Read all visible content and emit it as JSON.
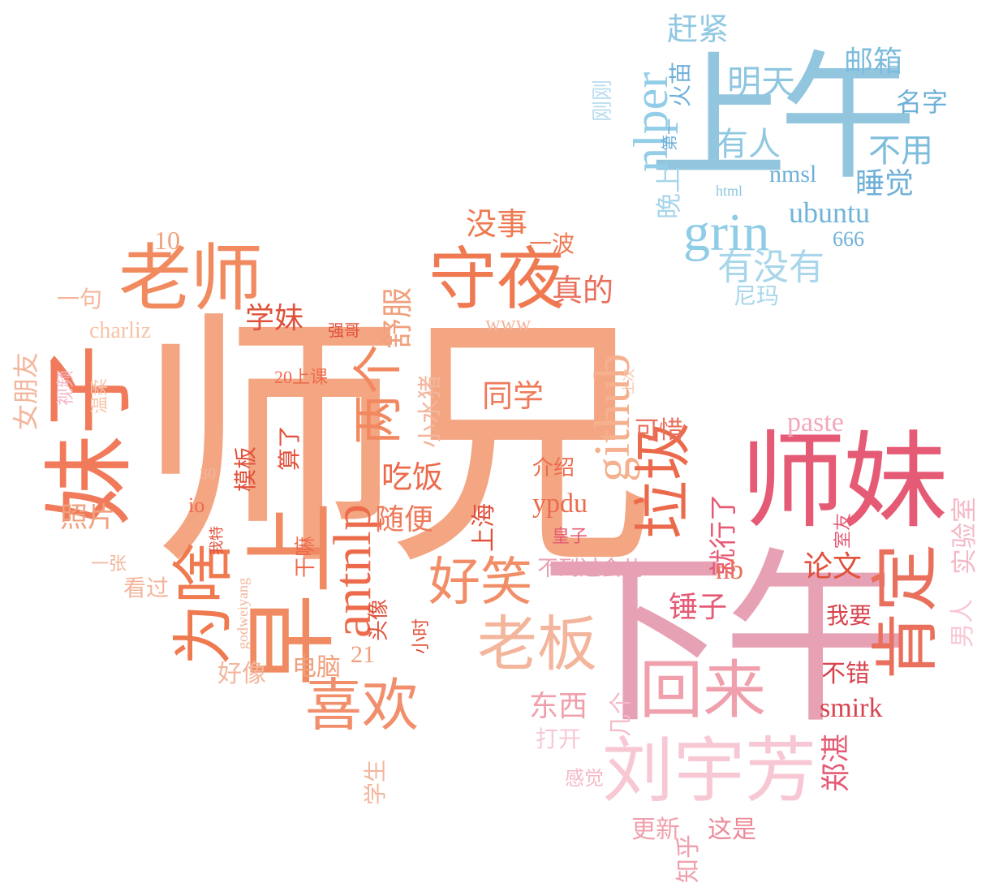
{
  "words": [
    {
      "text": "师兄",
      "color": "#f4a582"
    },
    {
      "text": "下午",
      "color": "#e7a1b4"
    },
    {
      "text": "上午",
      "color": "#92c5de"
    },
    {
      "text": "师妹",
      "color": "#e55a74"
    },
    {
      "text": "妹子",
      "color": "#f07a5a"
    },
    {
      "text": "早上",
      "color": "#f08a62"
    },
    {
      "text": "老师",
      "color": "#f28a60"
    },
    {
      "text": "守夜",
      "color": "#ef7a52"
    },
    {
      "text": "github",
      "color": "#f5b08e"
    },
    {
      "text": "antnlp",
      "color": "#ec6b4c"
    },
    {
      "text": "刘宇芳",
      "color": "#f7c8d4"
    },
    {
      "text": "肯定",
      "color": "#e8705c"
    },
    {
      "text": "回来",
      "color": "#f0a0ac"
    },
    {
      "text": "老板",
      "color": "#f3b69c"
    },
    {
      "text": "为啥",
      "color": "#f07a50"
    },
    {
      "text": "喜欢",
      "color": "#f18e6c"
    },
    {
      "text": "垃圾",
      "color": "#eb6a4c"
    },
    {
      "text": "两个",
      "color": "#f18860"
    },
    {
      "text": "好笑",
      "color": "#f18e68"
    },
    {
      "text": "grin",
      "color": "#8fcce6"
    },
    {
      "text": "nlper",
      "color": "#93cde8"
    },
    {
      "text": "ubuntu",
      "color": "#6fb4d8"
    },
    {
      "text": "明天",
      "color": "#8fc6e0"
    },
    {
      "text": "有人",
      "color": "#90c8e2"
    },
    {
      "text": "有没有",
      "color": "#a8d6ea"
    },
    {
      "text": "邮箱",
      "color": "#7cbcdc"
    },
    {
      "text": "不用",
      "color": "#7cbcdc"
    },
    {
      "text": "睡觉",
      "color": "#6fb0d8"
    },
    {
      "text": "名字",
      "color": "#6fb0d8"
    },
    {
      "text": "赶紧",
      "color": "#90c8e2"
    },
    {
      "text": "nmsl",
      "color": "#6fb0d8"
    },
    {
      "text": "666",
      "color": "#6fb0d8"
    },
    {
      "text": "晚上",
      "color": "#a8d6ea"
    },
    {
      "text": "html",
      "color": "#8fc6e0"
    },
    {
      "text": "尼玛",
      "color": "#a8d6ea"
    },
    {
      "text": "火苗",
      "color": "#6fb0d8"
    },
    {
      "text": "第一",
      "color": "#6fb0d8"
    },
    {
      "text": "刚刚",
      "color": "#b8dcef"
    },
    {
      "text": "没事",
      "color": "#ee7a52"
    },
    {
      "text": "一波",
      "color": "#ee7a52"
    },
    {
      "text": "真的",
      "color": "#e8705c"
    },
    {
      "text": "舒服",
      "color": "#f0a07c"
    },
    {
      "text": "www",
      "color": "#f3b69c"
    },
    {
      "text": "学妹",
      "color": "#e0503a"
    },
    {
      "text": "charliz",
      "color": "#f7c3a8"
    },
    {
      "text": "10",
      "color": "#f0a07c"
    },
    {
      "text": "一句",
      "color": "#f3b69c"
    },
    {
      "text": "强哥",
      "color": "#e0503a"
    },
    {
      "text": "20上课",
      "color": "#ec6b4c"
    },
    {
      "text": "同学",
      "color": "#ef7a5a"
    },
    {
      "text": "小水猪",
      "color": "#f3b69c"
    },
    {
      "text": "吃饭",
      "color": "#ec6b4c"
    },
    {
      "text": "paste",
      "color": "#f4a8bc"
    },
    {
      "text": "上次",
      "color": "#f7c3a8"
    },
    {
      "text": "可惜",
      "color": "#e8705c"
    },
    {
      "text": "就行了",
      "color": "#e55a74"
    },
    {
      "text": "介绍",
      "color": "#ec6b4c"
    },
    {
      "text": "ypdu",
      "color": "#ec6b4c"
    },
    {
      "text": "上海",
      "color": "#e0503a"
    },
    {
      "text": "随便",
      "color": "#ef7a5a"
    },
    {
      "text": "皇子",
      "color": "#e55a74"
    },
    {
      "text": "nb",
      "color": "#e8705c"
    },
    {
      "text": "论文",
      "color": "#e0503a"
    },
    {
      "text": "不到过会儿",
      "color": "#e8a0b4"
    },
    {
      "text": "锤子",
      "color": "#e55a74"
    },
    {
      "text": "我要",
      "color": "#d8424c"
    },
    {
      "text": "不错",
      "color": "#d8424c"
    },
    {
      "text": "smirk",
      "color": "#d8424c"
    },
    {
      "text": "东西",
      "color": "#f0a0ac"
    },
    {
      "text": "几个",
      "color": "#f5b8c6"
    },
    {
      "text": "打开",
      "color": "#f7c8d4"
    },
    {
      "text": "感觉",
      "color": "#f5b8c6"
    },
    {
      "text": "更新",
      "color": "#f0a0ac"
    },
    {
      "text": "这是",
      "color": "#ec8a98"
    },
    {
      "text": "知乎",
      "color": "#f0a0ac"
    },
    {
      "text": "郑湛",
      "color": "#e55a74"
    },
    {
      "text": "男人",
      "color": "#f7c8d4"
    },
    {
      "text": "实验室",
      "color": "#f5b8c6"
    },
    {
      "text": "室友",
      "color": "#e55a74"
    },
    {
      "text": "女朋友",
      "color": "#f3b69c"
    },
    {
      "text": "视频",
      "color": "#f5b8c6"
    },
    {
      "text": "温柔",
      "color": "#f7c3a8"
    },
    {
      "text": "照片",
      "color": "#f0a07c"
    },
    {
      "text": "30",
      "color": "#f3b69c"
    },
    {
      "text": "io",
      "color": "#ec6b4c"
    },
    {
      "text": "我特",
      "color": "#e0503a"
    },
    {
      "text": "一张",
      "color": "#f3b69c"
    },
    {
      "text": "看过",
      "color": "#f3b69c"
    },
    {
      "text": "godweiyang",
      "color": "#f3b69c"
    },
    {
      "text": "好像",
      "color": "#f3b69c"
    },
    {
      "text": "模板",
      "color": "#e0503a"
    },
    {
      "text": "算了",
      "color": "#e0503a"
    },
    {
      "text": "干嘛",
      "color": "#ec6b4c"
    },
    {
      "text": "头像",
      "color": "#e0503a"
    },
    {
      "text": "小时",
      "color": "#e0503a"
    },
    {
      "text": "电脑",
      "color": "#f0a07c"
    },
    {
      "text": "21",
      "color": "#f0a07c"
    },
    {
      "text": "学生",
      "color": "#f3b69c"
    }
  ]
}
